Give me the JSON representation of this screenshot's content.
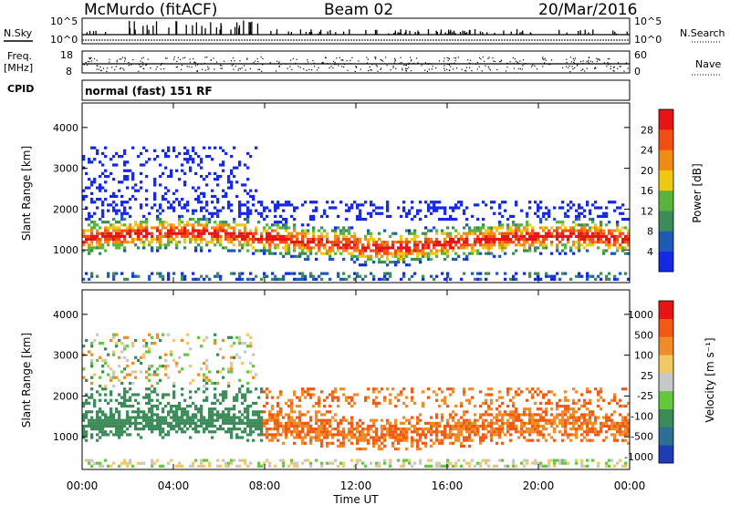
{
  "header": {
    "station": "McMurdo (fitACF)",
    "beam": "Beam 02",
    "date": "20/Mar/2016"
  },
  "top_panels": {
    "nsky_label": "N.Sky",
    "nsky_ticks": [
      "10^5",
      "10^0"
    ],
    "nsearch_label": "N.Search",
    "nsearch_ticks": [
      "10^5",
      "10^0"
    ],
    "freq_label": "Freq.",
    "freq_unit": "[MHz]",
    "freq_ticks": [
      "18",
      "8"
    ],
    "nave_label": "Nave",
    "nave_ticks": [
      "60",
      "0"
    ],
    "cpid_label": "CPID",
    "cpid_value": "normal (fast) 151 RF"
  },
  "chart_data": [
    {
      "type": "heatmap",
      "name": "power",
      "ylabel": "Slant Range [km]",
      "yticks": [
        "1000",
        "2000",
        "3000",
        "4000"
      ],
      "ylim": [
        200,
        4600
      ],
      "colorbar_label": "Power [dB]",
      "colorbar_ticks": [
        "4",
        "8",
        "12",
        "16",
        "20",
        "24",
        "28"
      ],
      "colors": [
        "#1428e6",
        "#1e5ab4",
        "#3c8c5a",
        "#5ab43c",
        "#f0c814",
        "#f08c14",
        "#f05014",
        "#e61414"
      ]
    },
    {
      "type": "heatmap",
      "name": "velocity",
      "ylabel": "Slant Range [km]",
      "yticks": [
        "1000",
        "2000",
        "3000",
        "4000"
      ],
      "ylim": [
        200,
        4600
      ],
      "colorbar_label": "Velocity [m s⁻¹]",
      "colorbar_ticks": [
        "1000",
        "500",
        "100",
        "25",
        "-25",
        "-100",
        "-500",
        "-1000"
      ],
      "colors": [
        "#1e3cb4",
        "#2d6e96",
        "#3c8c5a",
        "#64c83c",
        "#c8c8c8",
        "#f0c864",
        "#f08c28",
        "#f05a14",
        "#e61414"
      ]
    }
  ],
  "x_axis": {
    "ticks": [
      "00:00",
      "04:00",
      "08:00",
      "12:00",
      "16:00",
      "20:00",
      "00:00"
    ],
    "label": "Time UT"
  }
}
